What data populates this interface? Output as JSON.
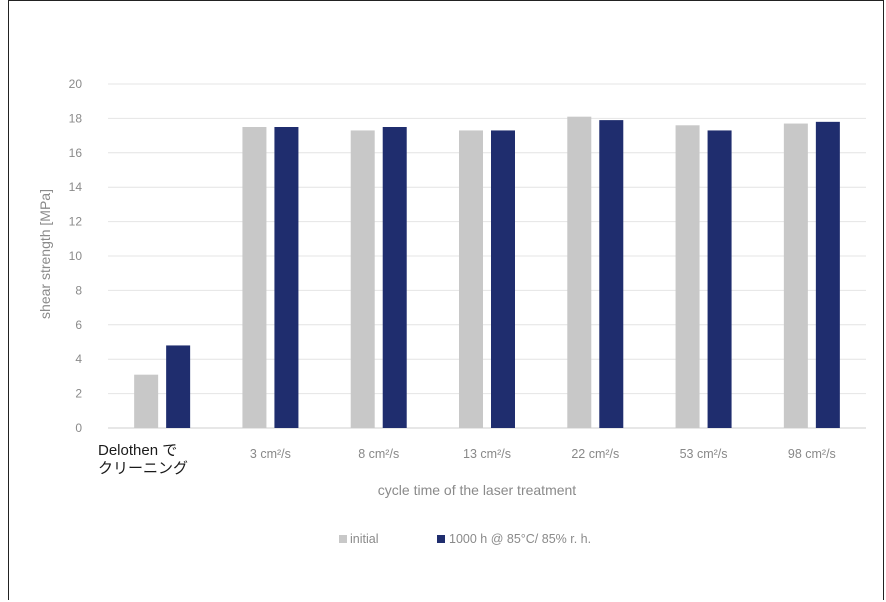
{
  "chart_data": {
    "type": "bar",
    "title": "",
    "xlabel": "cycle time of the laser treatment",
    "ylabel": "shear strength [MPa]",
    "ylim": [
      0,
      20
    ],
    "yticks": [
      0,
      2,
      4,
      6,
      8,
      10,
      12,
      14,
      16,
      18,
      20
    ],
    "grid": true,
    "legend_position": "bottom",
    "categories": [
      "Delothen で クリーニング",
      "3 cm²/s",
      "8 cm²/s",
      "13 cm²/s",
      "22 cm²/s",
      "53 cm²/s",
      "98 cm²/s"
    ],
    "series": [
      {
        "name": "initial",
        "color": "#c8c8c8",
        "values": [
          3.1,
          17.5,
          17.3,
          17.3,
          18.1,
          17.6,
          17.7
        ]
      },
      {
        "name": "1000 h @ 85°C/ 85% r. h.",
        "color": "#1f2d6e",
        "values": [
          4.8,
          17.5,
          17.5,
          17.3,
          17.9,
          17.3,
          17.8
        ]
      }
    ]
  }
}
